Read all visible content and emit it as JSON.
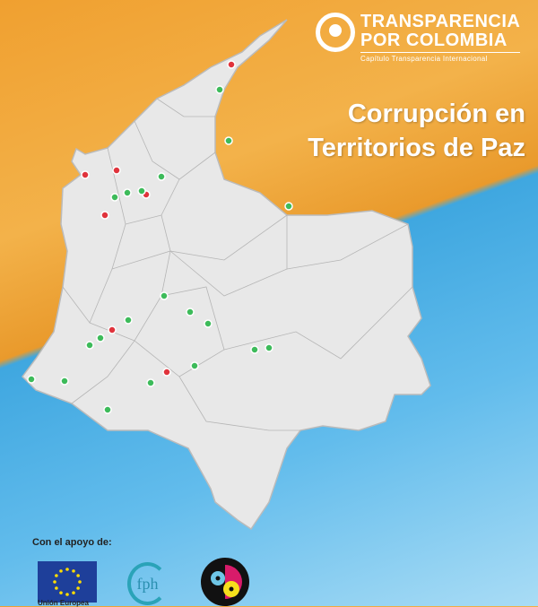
{
  "logo": {
    "line1": "TRANSPARENCIA",
    "line2": "POR COLOMBIA",
    "subtitle": "Capítulo Transparencia Internacional"
  },
  "title": {
    "line1": "Corrupción en",
    "line2": "Territorios de Paz"
  },
  "support": {
    "label": "Con el apoyo de:",
    "sponsors": [
      {
        "name": "Unión Europea"
      },
      {
        "name": "fph"
      },
      {
        "name": "disc-logo"
      }
    ]
  },
  "colors": {
    "map_fill": "#e6e6e6",
    "border": "#aaaaaa",
    "marker_red": "#e0333c",
    "marker_green": "#3dbb5a",
    "orange": "#f0a030",
    "blue": "#3fa7e0"
  }
}
